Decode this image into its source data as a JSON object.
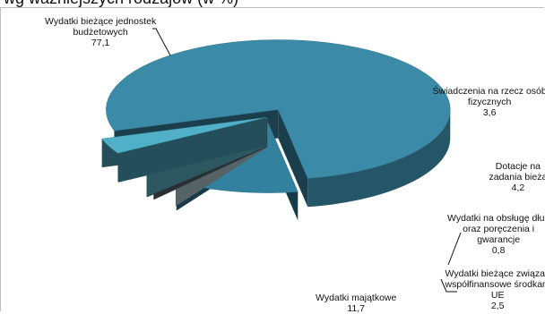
{
  "title": "wg ważniejszych rodzajów (w %)",
  "chart_data": {
    "type": "pie",
    "title": "wg ważniejszych rodzajów (w %)",
    "categories": [
      "Wydatki bieżące jednostek budżetowych",
      "Świadczenia na rzecz osób fizycznych",
      "Dotacje na zadania bieżące",
      "Wydatki na obsługę długu oraz poręczenia i gwarancje",
      "Wydatki bieżące związane z współfinansowe środkami UE",
      "Wydatki majątkowe"
    ],
    "values": [
      77.1,
      3.6,
      4.2,
      0.8,
      2.5,
      11.7
    ],
    "colors": [
      "#3a8aa8",
      "#4fb0c8",
      "#62bfd6",
      "#5a6b73",
      "#bcdbe3",
      "#31819f"
    ],
    "legend": "none",
    "labels": [
      {
        "lines": [
          "Wydatki bieżące jednostek",
          "budżetowych"
        ],
        "value": "77,1"
      },
      {
        "lines": [
          "Świadczenia na rzecz osób",
          "fizycznych"
        ],
        "value": "3,6"
      },
      {
        "lines": [
          "Dotacje na",
          "zadania bieżą"
        ],
        "value": "4,2"
      },
      {
        "lines": [
          "Wydatki na obsługę dług",
          "oraz poręczenia i",
          "gwarancje"
        ],
        "value": "0,8"
      },
      {
        "lines": [
          "Wydatki bieżące związan",
          "współfinansowe środkam",
          "UE"
        ],
        "value": "2,5"
      },
      {
        "lines": [
          "Wydatki majątkowe"
        ],
        "value": "11,7"
      }
    ]
  }
}
